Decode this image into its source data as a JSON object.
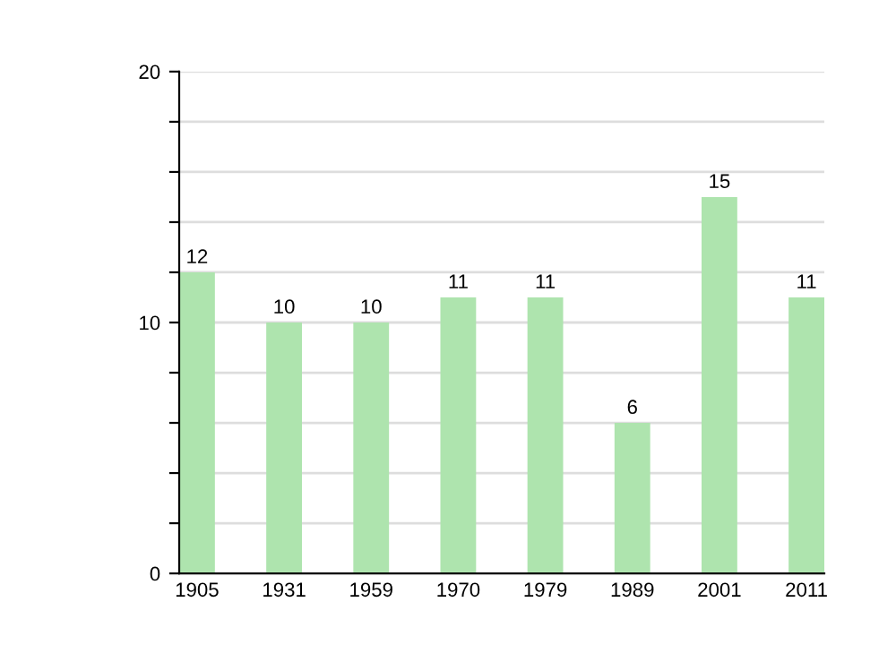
{
  "chart_data": {
    "type": "bar",
    "categories": [
      "1905",
      "1931",
      "1959",
      "1970",
      "1979",
      "1989",
      "2001",
      "2011"
    ],
    "values": [
      12,
      10,
      10,
      11,
      11,
      6,
      15,
      11
    ],
    "color": "#aee4ae",
    "data_labels": true,
    "ylim": [
      0,
      20
    ],
    "yticks": [
      0,
      {
        "value": 2,
        "label": null
      },
      {
        "value": 4,
        "label": null
      },
      {
        "value": 6,
        "label": null
      },
      {
        "value": 8,
        "label": null
      },
      10,
      {
        "value": 12,
        "label": null
      },
      {
        "value": 14,
        "label": null
      },
      {
        "value": 16,
        "label": null
      },
      {
        "value": 18,
        "label": null
      },
      20
    ],
    "grid": "y"
  }
}
